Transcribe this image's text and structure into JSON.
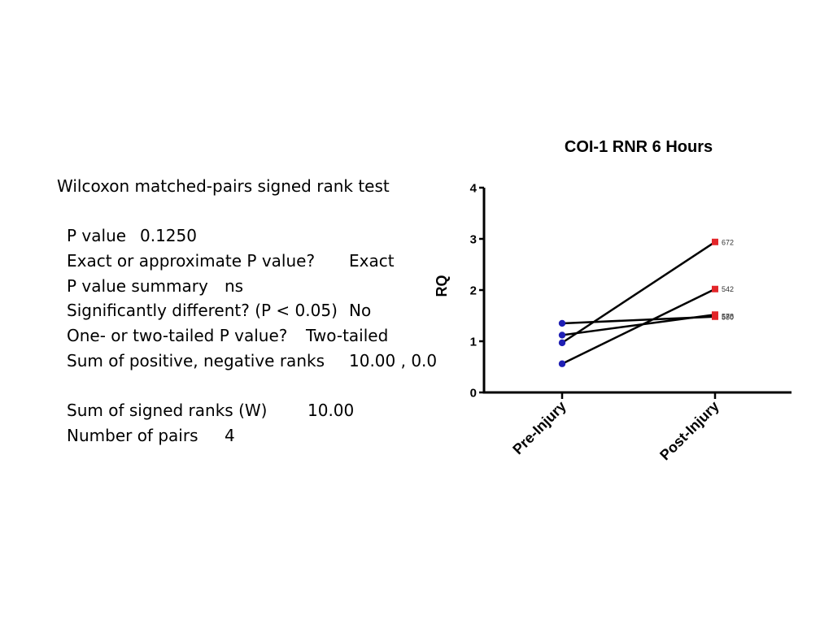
{
  "stats": {
    "heading": "Wilcoxon matched-pairs signed rank test",
    "rows": [
      {
        "label": "P value",
        "value": "0.1250"
      },
      {
        "label": "Exact or approximate P value?",
        "value": "Exact"
      },
      {
        "label": "P value summary",
        "value": "ns"
      },
      {
        "label": "Significantly different? (P < 0.05)",
        "value": "No"
      },
      {
        "label": "One- or two-tailed P value?",
        "value": "Two-tailed"
      },
      {
        "label": "Sum of positive, negative ranks",
        "value": "10.00 , 0.0"
      },
      {
        "label": "Sum of signed ranks (W)",
        "value": "10.00"
      },
      {
        "label": "Number of pairs",
        "value": "4"
      }
    ]
  },
  "chart_data": {
    "type": "line",
    "title": "COI-1 RNR 6 Hours",
    "ylabel": "RQ",
    "xlabel": "",
    "categories": [
      "Pre-Injury",
      "Post-Injury"
    ],
    "ylim": [
      0,
      4
    ],
    "yticks": [
      "0",
      "1",
      "2",
      "3",
      "4"
    ],
    "grid": false,
    "series": [
      {
        "name": "672",
        "values": [
          0.97,
          2.94
        ]
      },
      {
        "name": "542",
        "values": [
          0.56,
          2.02
        ]
      },
      {
        "name": "580",
        "values": [
          1.12,
          1.52
        ]
      },
      {
        "name": "578",
        "values": [
          1.35,
          1.48
        ]
      }
    ],
    "colors": {
      "pre_marker": "#1f1fb4",
      "post_marker": "#e3262a",
      "line": "#000000"
    }
  }
}
